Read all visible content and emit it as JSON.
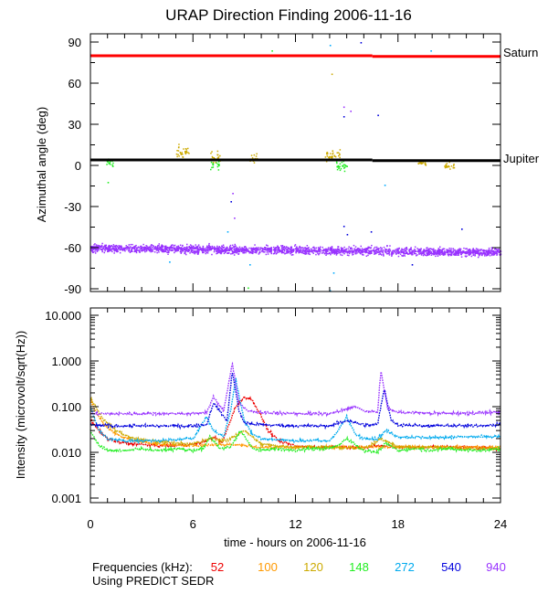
{
  "chart_data": [
    {
      "type": "scatter",
      "title": "URAP Direction Finding  2006-11-16",
      "ylabel": "Azimuthal angle (deg)",
      "xlabel": "",
      "xlim": [
        0,
        24
      ],
      "ylim": [
        -90,
        90
      ],
      "yticks": [
        90,
        60,
        30,
        0,
        -30,
        -60,
        -90
      ],
      "ytick_labels": [
        "90",
        "60",
        "30",
        "0",
        "-30",
        "-60",
        "-90"
      ],
      "reference_lines": [
        {
          "name": "Saturn",
          "color": "#ff0000",
          "segments": [
            {
              "x": [
                0,
                16.5
              ],
              "y": 80
            },
            {
              "x": [
                16.5,
                24
              ],
              "y": 79.5
            }
          ]
        },
        {
          "name": "Jupiter",
          "color": "#000000",
          "segments": [
            {
              "x": [
                0,
                16.5
              ],
              "y": 4
            },
            {
              "x": [
                16.5,
                24
              ],
              "y": 3.5
            }
          ]
        }
      ],
      "clusters": [
        {
          "freq": "940",
          "color": "#9933ff",
          "x": [
            0,
            24
          ],
          "center": -60,
          "center_end": -63,
          "spread": 5
        },
        {
          "freq": "120",
          "color": "#ccaa00",
          "x": [
            5.0,
            5.8
          ],
          "center": 10,
          "spread": 9
        },
        {
          "freq": "120",
          "color": "#ccaa00",
          "x": [
            7.0,
            7.6
          ],
          "center": 6,
          "spread": 8
        },
        {
          "freq": "120",
          "color": "#ccaa00",
          "x": [
            9.3,
            9.8
          ],
          "center": 5,
          "spread": 6
        },
        {
          "freq": "120",
          "color": "#ccaa00",
          "x": [
            13.7,
            14.6
          ],
          "center": 8,
          "spread": 7
        },
        {
          "freq": "120",
          "color": "#ccaa00",
          "x": [
            19.1,
            19.6
          ],
          "center": 2,
          "spread": 5
        },
        {
          "freq": "120",
          "color": "#ccaa00",
          "x": [
            20.7,
            21.3
          ],
          "center": 0,
          "spread": 4
        },
        {
          "freq": "148",
          "color": "#22ee22",
          "x": [
            0.9,
            1.3
          ],
          "center": 2,
          "spread": 5
        },
        {
          "freq": "148",
          "color": "#22ee22",
          "x": [
            7.0,
            7.5
          ],
          "center": 1,
          "spread": 6
        },
        {
          "freq": "148",
          "color": "#22ee22",
          "x": [
            14.3,
            15.0
          ],
          "center": 0,
          "spread": 6
        }
      ],
      "scattered_points": [
        {
          "x": 14.0,
          "y": 88,
          "color": "#00aaff"
        },
        {
          "x": 15.8,
          "y": 90,
          "color": "#0000dd"
        },
        {
          "x": 19.9,
          "y": 84,
          "color": "#00aaff"
        },
        {
          "x": 10.6,
          "y": 84,
          "color": "#22ee22"
        },
        {
          "x": 14.1,
          "y": 67,
          "color": "#ccaa00"
        },
        {
          "x": 14.8,
          "y": 43,
          "color": "#9933ff"
        },
        {
          "x": 14.8,
          "y": 36,
          "color": "#0000dd"
        },
        {
          "x": 15.2,
          "y": 40,
          "color": "#9933ff"
        },
        {
          "x": 16.8,
          "y": 37,
          "color": "#0000dd"
        },
        {
          "x": 8.3,
          "y": -20,
          "color": "#9933ff"
        },
        {
          "x": 8.2,
          "y": -26,
          "color": "#0000dd"
        },
        {
          "x": 8.4,
          "y": -38,
          "color": "#9933ff"
        },
        {
          "x": 8.0,
          "y": -48,
          "color": "#00aaff"
        },
        {
          "x": 14.8,
          "y": -44,
          "color": "#0000dd"
        },
        {
          "x": 15.0,
          "y": -50,
          "color": "#0000dd"
        },
        {
          "x": 14.2,
          "y": -78,
          "color": "#00aaff"
        },
        {
          "x": 9.3,
          "y": -72,
          "color": "#00aaff"
        },
        {
          "x": 4.6,
          "y": -70,
          "color": "#00aaff"
        },
        {
          "x": 18.8,
          "y": -72,
          "color": "#0000dd"
        },
        {
          "x": 9.2,
          "y": -89,
          "color": "#22ee22"
        },
        {
          "x": 14.0,
          "y": -91,
          "color": "#00aaff"
        },
        {
          "x": 1.0,
          "y": -12,
          "color": "#22ee22"
        },
        {
          "x": 17.2,
          "y": -14,
          "color": "#00aaff"
        },
        {
          "x": 16.4,
          "y": -48,
          "color": "#0000dd"
        },
        {
          "x": 21.7,
          "y": -46,
          "color": "#0000dd"
        }
      ]
    },
    {
      "type": "line",
      "ylabel": "Intensity (microvolt/sqrt(Hz))",
      "xlabel": "time - hours on 2006-11-16",
      "xlim": [
        0,
        24
      ],
      "ylim": [
        0.001,
        10
      ],
      "yscale": "log",
      "xticks": [
        0,
        6,
        12,
        18,
        24
      ],
      "xtick_labels": [
        "0",
        "6",
        "12",
        "18",
        "24"
      ],
      "yticks": [
        10,
        1,
        0.1,
        0.01,
        0.001
      ],
      "ytick_labels": [
        "10.000",
        "1.000",
        "0.100",
        "0.010",
        "0.001"
      ],
      "series": [
        {
          "name": "52",
          "color": "#ee0000",
          "x": [
            0,
            0.5,
            1.0,
            1.5,
            2.0,
            3.0,
            4.0,
            5.0,
            6.0,
            6.8,
            7.2,
            7.7,
            8.5,
            9.0,
            9.4,
            9.7,
            10.0,
            10.4,
            11.0,
            12.0,
            13.0,
            14.0,
            15.0,
            16.0,
            17.0,
            18.0,
            20.0,
            22.0,
            24.0
          ],
          "y": [
            0.05,
            0.03,
            0.02,
            0.017,
            0.016,
            0.015,
            0.014,
            0.014,
            0.015,
            0.018,
            0.022,
            0.016,
            0.1,
            0.16,
            0.15,
            0.1,
            0.06,
            0.03,
            0.018,
            0.014,
            0.013,
            0.013,
            0.013,
            0.013,
            0.014,
            0.013,
            0.013,
            0.013,
            0.012
          ]
        },
        {
          "name": "100",
          "color": "#ff9900",
          "x": [
            0,
            0.3,
            0.8,
            1.5,
            2.5,
            4.0,
            6.0,
            8.0,
            10.0,
            12.0,
            14.0,
            16.0,
            18.0,
            20.0,
            22.0,
            24.0
          ],
          "y": [
            0.14,
            0.08,
            0.04,
            0.025,
            0.018,
            0.015,
            0.014,
            0.015,
            0.013,
            0.013,
            0.013,
            0.013,
            0.013,
            0.013,
            0.013,
            0.013
          ]
        },
        {
          "name": "120",
          "color": "#ccaa00",
          "x": [
            0,
            0.3,
            0.8,
            1.5,
            2.5,
            4.0,
            6.0,
            7.0,
            8.0,
            9.0,
            10.0,
            12.0,
            14.0,
            16.0,
            17.0,
            18.0,
            20.0,
            22.0,
            24.0
          ],
          "y": [
            0.16,
            0.1,
            0.05,
            0.03,
            0.02,
            0.017,
            0.015,
            0.02,
            0.018,
            0.03,
            0.015,
            0.013,
            0.013,
            0.012,
            0.02,
            0.013,
            0.013,
            0.012,
            0.012
          ]
        },
        {
          "name": "148",
          "color": "#22ee22",
          "x": [
            0,
            0.5,
            1.0,
            2.0,
            3.0,
            4.0,
            5.0,
            6.0,
            6.6,
            7.0,
            7.6,
            8.2,
            8.8,
            9.5,
            10.0,
            11.0,
            12.0,
            13.0,
            14.0,
            14.5,
            15.0,
            16.0,
            16.8,
            17.3,
            18.0,
            19.0,
            20.0,
            21.0,
            22.0,
            23.0,
            24.0
          ],
          "y": [
            0.03,
            0.014,
            0.011,
            0.011,
            0.012,
            0.011,
            0.012,
            0.011,
            0.012,
            0.022,
            0.012,
            0.013,
            0.03,
            0.012,
            0.011,
            0.012,
            0.011,
            0.012,
            0.012,
            0.014,
            0.02,
            0.011,
            0.01,
            0.016,
            0.011,
            0.012,
            0.011,
            0.012,
            0.011,
            0.011,
            0.012
          ]
        },
        {
          "name": "272",
          "color": "#00aaee",
          "x": [
            0,
            0.5,
            1.0,
            2.0,
            4.0,
            6.0,
            6.8,
            7.2,
            7.8,
            8.2,
            8.5,
            9.0,
            9.5,
            10.0,
            12.0,
            14.0,
            14.5,
            15.0,
            15.5,
            16.0,
            16.8,
            17.3,
            18.0,
            20.0,
            22.0,
            24.0
          ],
          "y": [
            0.1,
            0.03,
            0.02,
            0.018,
            0.018,
            0.02,
            0.06,
            0.03,
            0.022,
            0.08,
            0.4,
            0.05,
            0.025,
            0.02,
            0.018,
            0.018,
            0.03,
            0.06,
            0.025,
            0.02,
            0.02,
            0.03,
            0.022,
            0.021,
            0.022,
            0.022
          ]
        },
        {
          "name": "540",
          "color": "#0000dd",
          "x": [
            0,
            1.0,
            2.0,
            4.0,
            6.0,
            6.8,
            7.2,
            8.0,
            8.3,
            8.7,
            9.0,
            10.0,
            12.0,
            14.0,
            15.0,
            16.0,
            16.8,
            17.2,
            17.6,
            18.0,
            20.0,
            22.0,
            24.0
          ],
          "y": [
            0.04,
            0.038,
            0.038,
            0.038,
            0.038,
            0.04,
            0.12,
            0.05,
            0.6,
            0.08,
            0.045,
            0.04,
            0.038,
            0.038,
            0.05,
            0.04,
            0.04,
            0.25,
            0.05,
            0.04,
            0.038,
            0.038,
            0.04
          ]
        },
        {
          "name": "940",
          "color": "#9933ff",
          "x": [
            0,
            2.0,
            4.0,
            6.0,
            6.8,
            7.2,
            7.8,
            8.3,
            8.7,
            9.2,
            10.0,
            12.0,
            14.0,
            15.5,
            16.0,
            16.8,
            17.0,
            17.4,
            18.0,
            20.0,
            22.0,
            24.0
          ],
          "y": [
            0.07,
            0.07,
            0.07,
            0.07,
            0.075,
            0.16,
            0.08,
            0.9,
            0.12,
            0.08,
            0.075,
            0.07,
            0.07,
            0.1,
            0.08,
            0.075,
            0.6,
            0.09,
            0.075,
            0.072,
            0.072,
            0.075
          ]
        }
      ]
    }
  ],
  "legend": {
    "prefix": "Frequencies (kHz):",
    "items": [
      {
        "label": "52",
        "color": "#ee0000"
      },
      {
        "label": "100",
        "color": "#ff9900"
      },
      {
        "label": "120",
        "color": "#ccaa00"
      },
      {
        "label": "148",
        "color": "#22ee22"
      },
      {
        "label": "272",
        "color": "#00aaee"
      },
      {
        "label": "540",
        "color": "#0000dd"
      },
      {
        "label": "940",
        "color": "#9933ff"
      }
    ]
  },
  "footer": "Using PREDICT SEDR"
}
